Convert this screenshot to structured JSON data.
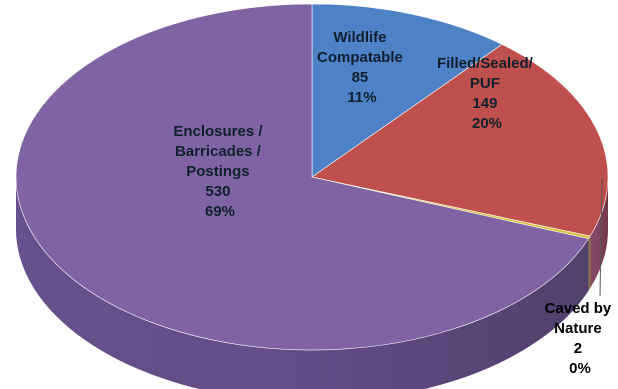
{
  "chart_data": {
    "type": "pie",
    "title": "",
    "legend": "none",
    "slices": [
      {
        "label": [
          "Wildlife",
          "Compatable"
        ],
        "value": 85,
        "percent": "11%",
        "color": "#4f81c7"
      },
      {
        "label": [
          "Filled/Sealed/",
          "PUF"
        ],
        "value": 149,
        "percent": "20%",
        "color": "#c0504d"
      },
      {
        "label": [
          "Caved by",
          "Nature"
        ],
        "value": 2,
        "percent": "0%",
        "color": "#d8c237"
      },
      {
        "label": [
          "Enclosures /",
          "Barricades /",
          "Postings"
        ],
        "value": 530,
        "percent": "69%",
        "color": "#7f63a2"
      }
    ]
  }
}
